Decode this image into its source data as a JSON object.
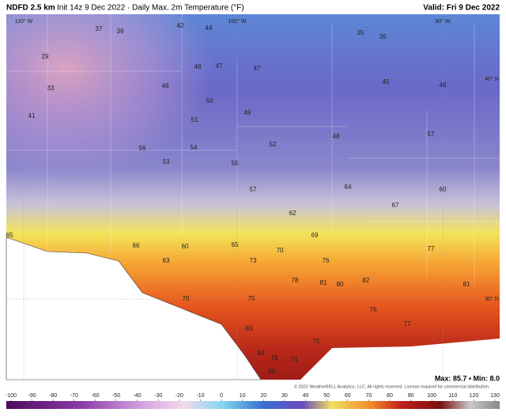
{
  "header": {
    "title": "NDFD 2.5 km",
    "subtitle": "Init 14z 9 Dec 2022 · Daily Max. 2m Temperature (°F)",
    "valid": "Valid: Fri 9 Dec 2022"
  },
  "map": {
    "grid_labels": [
      "110° W",
      "100° W",
      "90° W",
      "40° N",
      "30° N"
    ],
    "values": [
      37,
      39,
      42,
      44,
      35,
      36,
      29,
      33,
      41,
      48,
      48,
      47,
      47,
      45,
      46,
      50,
      51,
      49,
      55,
      56,
      53,
      54,
      52,
      48,
      57,
      57,
      62,
      64,
      60,
      65,
      66,
      63,
      60,
      65,
      69,
      70,
      73,
      76,
      80,
      81,
      78,
      82,
      81,
      77,
      70,
      75,
      83,
      84,
      85,
      79,
      75,
      74,
      77,
      76,
      67
    ]
  },
  "footer": {
    "copyright": "© 2022 WeatherBELL Analytics, LLC. All rights reserved. License required for commercial distribution.",
    "stats": "Max: 85.7 • Min: 8.0"
  },
  "colorbar": {
    "ticks": [
      -100,
      -90,
      -80,
      -70,
      -60,
      -50,
      -40,
      -30,
      -20,
      -10,
      0,
      10,
      20,
      30,
      40,
      50,
      60,
      70,
      80,
      90,
      100,
      110,
      120,
      130
    ]
  }
}
